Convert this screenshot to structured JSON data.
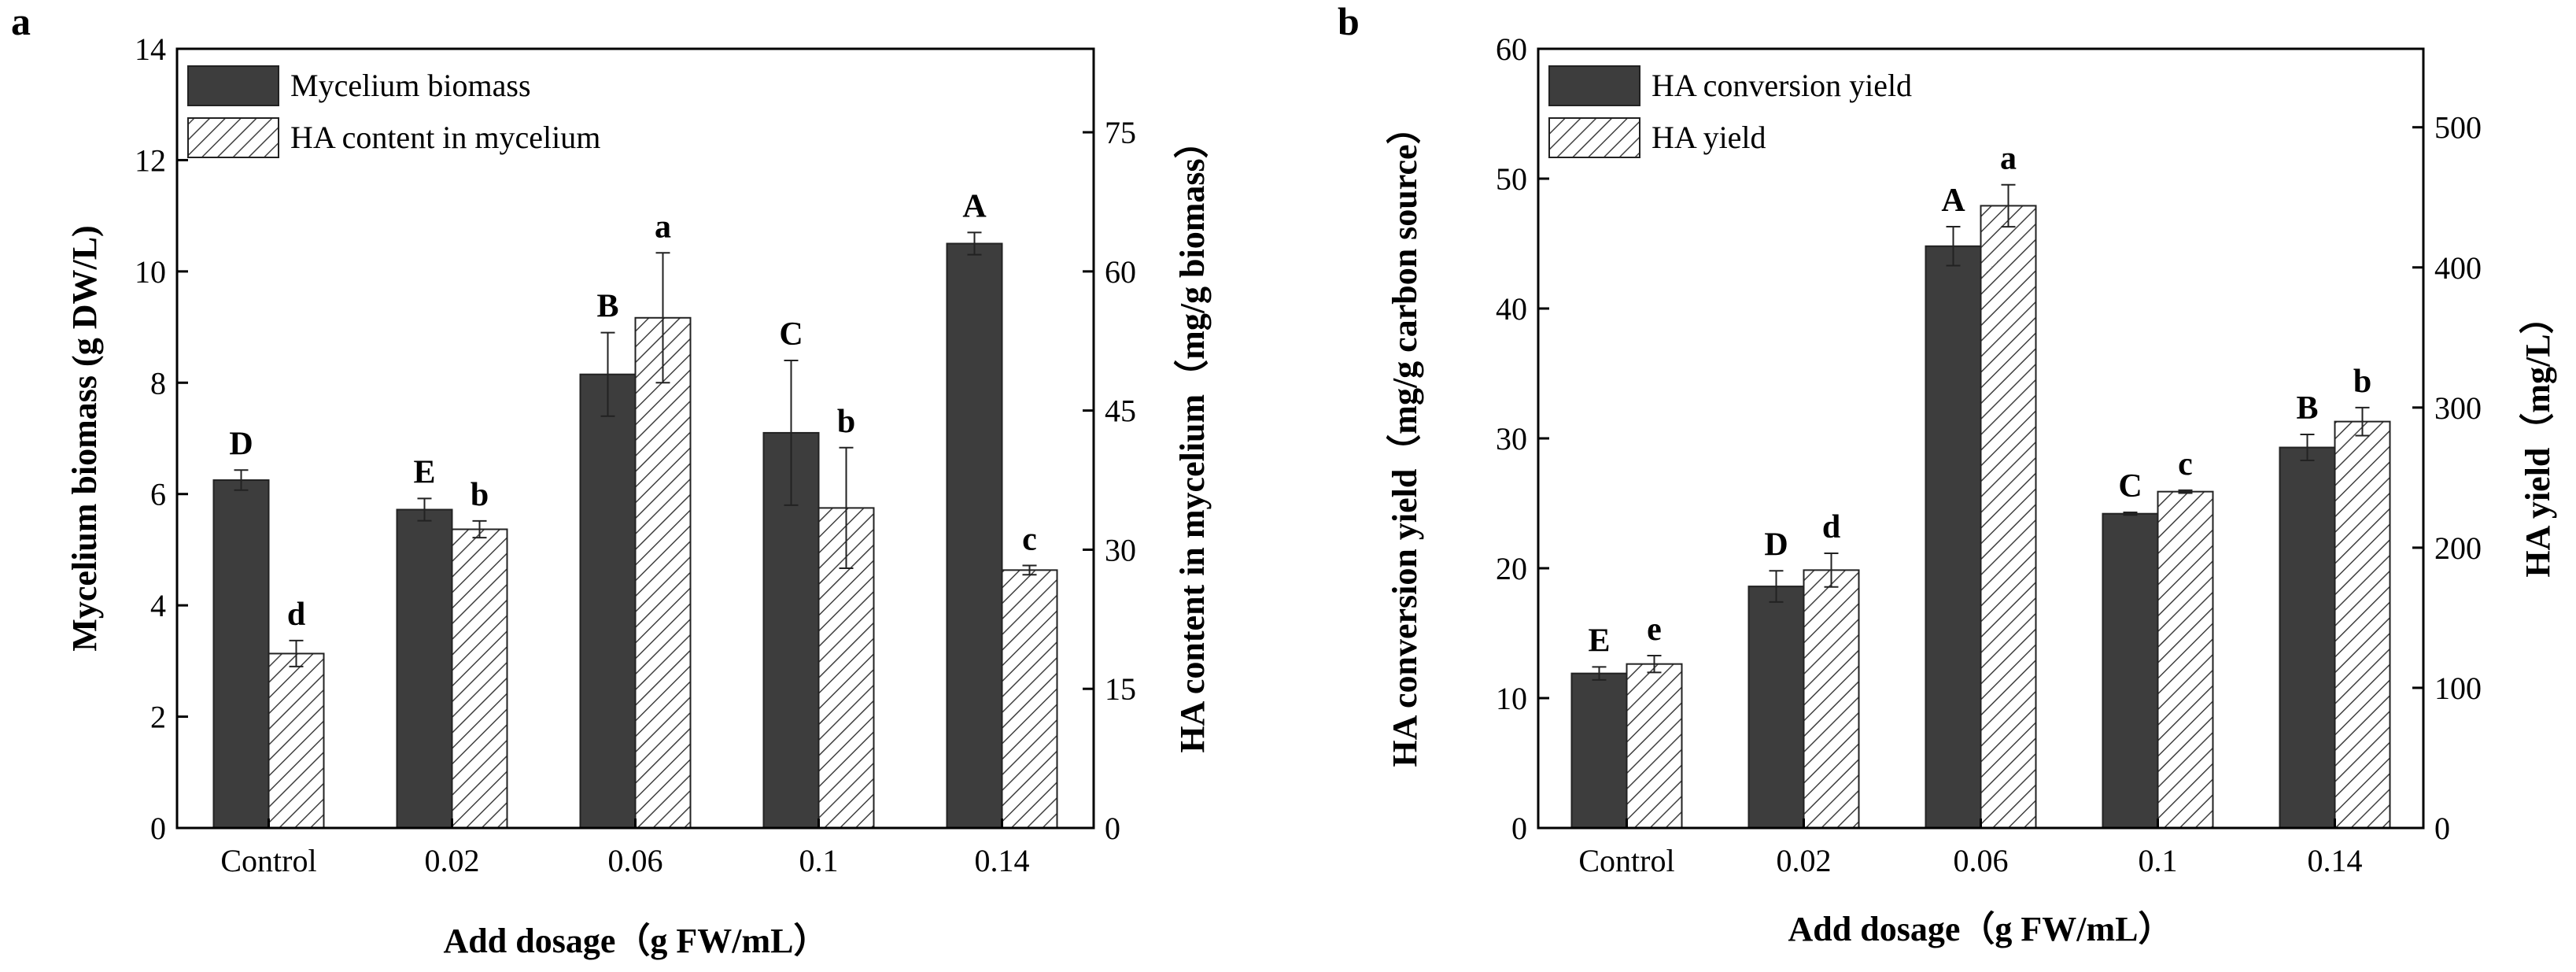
{
  "colors": {
    "dark_bar": "#3d3d3d",
    "hatch_line": "#404040",
    "axis": "#000000"
  },
  "chart_data": [
    {
      "type": "bar",
      "panel_label": "a",
      "categories": [
        "Control",
        "0.02",
        "0.06",
        "0.1",
        "0.14"
      ],
      "xlabel": "Add dosage（g FW/mL）",
      "ylabel": "Mycelium biomass (g DW/L)",
      "y2label": "HA content in mycelium（mg/g biomass）",
      "ylim": [
        0,
        14
      ],
      "yticks": [
        0,
        2,
        4,
        6,
        8,
        10,
        12,
        14
      ],
      "y2lim": [
        0,
        84
      ],
      "y2ticks": [
        0,
        15,
        30,
        45,
        60,
        75
      ],
      "legend_position": "top-left",
      "series": [
        {
          "name": "Mycelium biomass",
          "axis": "left",
          "style": "solid",
          "values": [
            6.25,
            5.72,
            8.15,
            7.1,
            10.5
          ],
          "errors": [
            0.18,
            0.2,
            0.75,
            1.3,
            0.2
          ],
          "labels": [
            "D",
            "E",
            "B",
            "C",
            "A"
          ]
        },
        {
          "name": "HA content in mycelium",
          "axis": "right",
          "style": "hatched",
          "values": [
            18.8,
            32.2,
            55,
            34.5,
            27.8
          ],
          "errors": [
            1.4,
            0.9,
            7,
            6.5,
            0.5
          ],
          "labels": [
            "d",
            "b",
            "a",
            "b",
            "c"
          ]
        }
      ]
    },
    {
      "type": "bar",
      "panel_label": "b",
      "categories": [
        "Control",
        "0.02",
        "0.06",
        "0.1",
        "0.14"
      ],
      "xlabel": "Add dosage（g FW/mL）",
      "ylabel": "HA conversion yield（mg/g carbon source）",
      "y2label": "HA yield（mg/L）",
      "ylim": [
        0,
        60
      ],
      "yticks": [
        0,
        10,
        20,
        30,
        40,
        50,
        60
      ],
      "y2lim": [
        0,
        556
      ],
      "y2ticks": [
        0,
        100,
        200,
        300,
        400,
        500
      ],
      "legend_position": "top-left",
      "series": [
        {
          "name": "HA conversion yield",
          "axis": "left",
          "style": "solid",
          "values": [
            11.9,
            18.6,
            44.8,
            24.2,
            29.3
          ],
          "errors": [
            0.5,
            1.2,
            1.5,
            0.1,
            1.0
          ],
          "labels": [
            "E",
            "D",
            "A",
            "C",
            "B"
          ]
        },
        {
          "name": "HA yield",
          "axis": "right",
          "style": "hatched",
          "values": [
            117,
            184,
            444,
            240,
            290
          ],
          "errors": [
            6,
            12,
            15,
            1,
            10
          ],
          "labels": [
            "e",
            "d",
            "a",
            "c",
            "b"
          ]
        }
      ]
    }
  ]
}
